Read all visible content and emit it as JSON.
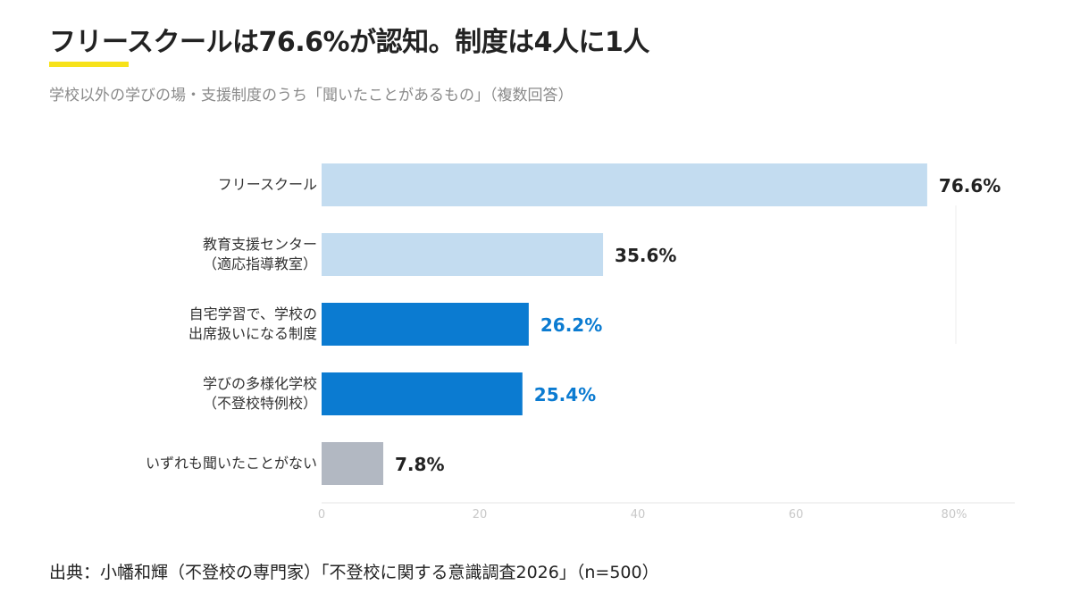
{
  "title": "フリースクールは76.6%が認知。制度は4人に1人",
  "subtitle": "学校以外の学びの場・支援制度のうち「聞いたことがあるもの」（複数回答）",
  "source": "出典：小幡和輝（不登校の専門家）「不登校に関する意識調査2026」（n=500）",
  "colors": {
    "accent_underline": "#f7e21a",
    "bar_light": "#c3dcf0",
    "bar_dark": "#0b7bd1",
    "bar_gray": "#b2b8c2",
    "label_dark": "#222222",
    "label_blue": "#0b7bd1"
  },
  "chart_data": {
    "type": "bar",
    "orientation": "horizontal",
    "categories": [
      [
        "フリースクール"
      ],
      [
        "教育支援センター",
        "（適応指導教室）"
      ],
      [
        "自宅学習で、学校の",
        "出席扱いになる制度"
      ],
      [
        "学びの多様化学校",
        "（不登校特例校）"
      ],
      [
        "いずれも聞いたことがない"
      ]
    ],
    "values": [
      76.6,
      35.6,
      26.2,
      25.4,
      7.8
    ],
    "value_labels": [
      "76.6%",
      "35.6%",
      "26.2%",
      "25.4%",
      "7.8%"
    ],
    "bar_colors": [
      "bar_light",
      "bar_light",
      "bar_dark",
      "bar_dark",
      "bar_gray"
    ],
    "label_colors": [
      "label_dark",
      "label_dark",
      "label_blue",
      "label_blue",
      "label_dark"
    ],
    "xlim": [
      0,
      80
    ],
    "xticks": [
      0,
      20,
      40,
      60,
      80
    ],
    "xtick_labels": [
      "0",
      "20",
      "40",
      "60",
      "80%"
    ],
    "grid": false
  }
}
